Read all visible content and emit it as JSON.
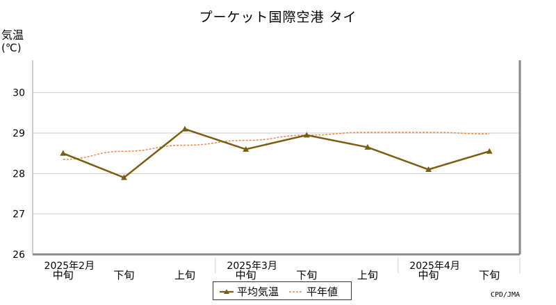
{
  "chart_data": {
    "type": "line",
    "title": "プーケット国際空港 タイ",
    "ylabel": "気温",
    "ylabel_unit": "(℃)",
    "ylim": [
      26,
      30.8
    ],
    "yticks": [
      26,
      27,
      28,
      29,
      30
    ],
    "grid": true,
    "categories": [
      "中旬",
      "下旬",
      "上旬",
      "中旬",
      "下旬",
      "上旬",
      "中旬",
      "下旬"
    ],
    "month_labels": [
      {
        "label": "2025年2月",
        "index": 0
      },
      {
        "label": "2025年3月",
        "index": 3
      },
      {
        "label": "2025年4月",
        "index": 6
      }
    ],
    "series": [
      {
        "name": "平均気温",
        "color": "#7a5c12",
        "style": "solid-triangle",
        "values": [
          28.5,
          27.9,
          29.1,
          28.6,
          28.95,
          28.65,
          28.1,
          28.55
        ]
      },
      {
        "name": "平年値",
        "color": "#ee8844",
        "style": "dashed",
        "values": [
          28.35,
          28.55,
          28.7,
          28.82,
          28.95,
          29.02,
          29.02,
          28.98
        ]
      }
    ],
    "legend": "bottom-center",
    "credit": "CPD/JMA"
  }
}
